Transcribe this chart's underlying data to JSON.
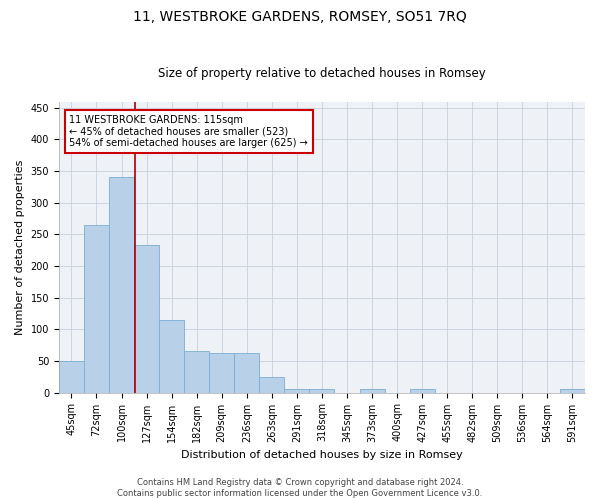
{
  "title": "11, WESTBROKE GARDENS, ROMSEY, SO51 7RQ",
  "subtitle": "Size of property relative to detached houses in Romsey",
  "xlabel": "Distribution of detached houses by size in Romsey",
  "ylabel": "Number of detached properties",
  "bar_labels": [
    "45sqm",
    "72sqm",
    "100sqm",
    "127sqm",
    "154sqm",
    "182sqm",
    "209sqm",
    "236sqm",
    "263sqm",
    "291sqm",
    "318sqm",
    "345sqm",
    "373sqm",
    "400sqm",
    "427sqm",
    "455sqm",
    "482sqm",
    "509sqm",
    "536sqm",
    "564sqm",
    "591sqm"
  ],
  "bar_heights": [
    50,
    265,
    340,
    233,
    115,
    65,
    62,
    62,
    25,
    5,
    5,
    0,
    5,
    0,
    5,
    0,
    0,
    0,
    0,
    0,
    5
  ],
  "bar_color": "#b8d0e8",
  "bar_edge_color": "#7aadd4",
  "vline_x_idx": 2.55,
  "vline_color": "#aa0000",
  "annotation_text": "11 WESTBROKE GARDENS: 115sqm\n← 45% of detached houses are smaller (523)\n54% of semi-detached houses are larger (625) →",
  "annotation_box_color": "#cc0000",
  "ylim": [
    0,
    460
  ],
  "yticks": [
    0,
    50,
    100,
    150,
    200,
    250,
    300,
    350,
    400,
    450
  ],
  "bg_color": "#eef2f7",
  "grid_color": "#c8d0dc",
  "footer": "Contains HM Land Registry data © Crown copyright and database right 2024.\nContains public sector information licensed under the Open Government Licence v3.0.",
  "title_fontsize": 10,
  "subtitle_fontsize": 8.5,
  "xlabel_fontsize": 8,
  "ylabel_fontsize": 8,
  "tick_fontsize": 7,
  "footer_fontsize": 6,
  "annot_fontsize": 7
}
